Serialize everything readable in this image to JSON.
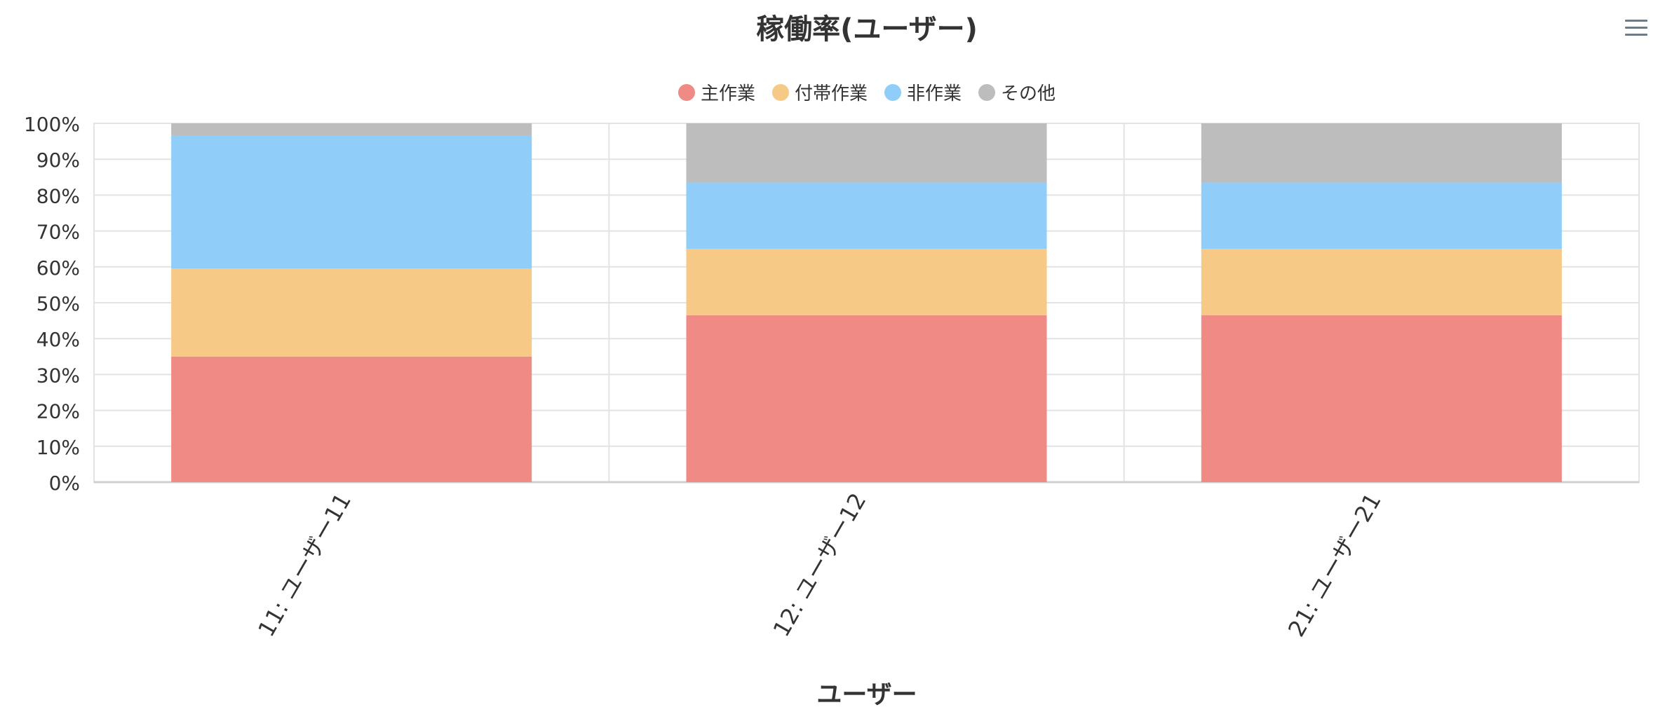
{
  "chart_data": {
    "type": "bar",
    "stacked": true,
    "normalized": true,
    "title": "稼働率(ユーザー)",
    "xlabel": "ユーザー",
    "ylabel": "",
    "ylim": [
      0,
      100
    ],
    "yticks": [
      "0%",
      "10%",
      "20%",
      "30%",
      "40%",
      "50%",
      "60%",
      "70%",
      "80%",
      "90%",
      "100%"
    ],
    "grid": true,
    "legend_position": "top",
    "categories": [
      "11: ユーザー11",
      "12: ユーザー12",
      "21: ユーザー21"
    ],
    "series": [
      {
        "name": "主作業",
        "color": "#f08a84",
        "values": [
          35,
          46.5,
          46.5
        ]
      },
      {
        "name": "付帯作業",
        "color": "#f7c987",
        "values": [
          24.5,
          18.5,
          18.5
        ]
      },
      {
        "name": "非作業",
        "color": "#90cdf8",
        "values": [
          37,
          18.5,
          18.5
        ]
      },
      {
        "name": "その他",
        "color": "#bdbdbd",
        "values": [
          3.5,
          16.5,
          16.5
        ]
      }
    ]
  },
  "menu_icon": "hamburger-menu-icon"
}
